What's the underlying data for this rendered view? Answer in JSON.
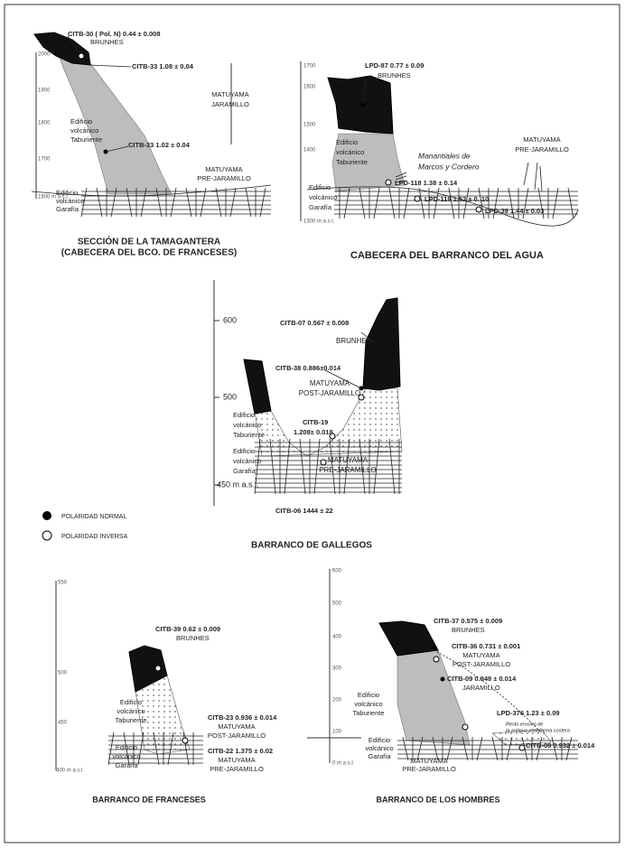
{
  "tamagantera": {
    "title": [
      "SECCIÓN DE LA TAMAGANTERA",
      "(CABECERA DEL BCO. DE FRANCESES)"
    ],
    "ticks": [
      "2000",
      "1900",
      "1800",
      "1700",
      "1600 m a.s.l."
    ],
    "citb30": "CITB-30 ( Pol. N) 0.44 ± 0.008",
    "brunhes": "BRUNHES",
    "citb33a": "CITB-33 1.08 ± 0.04",
    "jaramillo": [
      "MATUYAMA",
      "JARAMILLO"
    ],
    "taburiente": [
      "Edificio",
      "volcánico",
      "Taburiente"
    ],
    "citb33b": "CITB-33 1.02 ± 0.04",
    "prejaramillo": [
      "MATUYAMA",
      "PRE-JARAMILLO"
    ],
    "garafia": [
      "Edificio",
      "volcánico",
      "Garafía"
    ]
  },
  "agua": {
    "title": "CABECERA DEL  BARRANCO DEL AGUA",
    "ticks": [
      "1700",
      "1600",
      "1500",
      "1400",
      "1300 m a.s.l."
    ],
    "lpd87": "LPD-87  0.77 ± 0.09",
    "brunhes": "BRUNHES",
    "taburiente": [
      "Edificio",
      "volcánico",
      "Taburiente"
    ],
    "manantiales": [
      "Manantiales de",
      "Marcos y Cordero"
    ],
    "prejaramillo": [
      "MATUYAMA",
      "PRE-JARAMILLO"
    ],
    "garafia": [
      "Edificio",
      "volcánico",
      "Garafía"
    ],
    "lpd118": "LPD-118 1.38 ± 0.14",
    "lpd119": "LPD-119 1.52 ± 0. 10",
    "lpd39": "LPD-39 1.44 ± 0.03"
  },
  "gallegos": {
    "title": "BARRANCO DE GALLEGOS",
    "ticks": [
      "600",
      "500",
      "450 m a.s.l."
    ],
    "citb07": "CITB-07 0.567 ± 0.008",
    "brunhes": "BRUNHES",
    "citb38": "CITB-38  0.886±0.014",
    "postjaramillo": [
      "MATUYAMA",
      "POST-JARAMILLO"
    ],
    "taburiente": [
      "Edificio",
      "volcánico",
      "Taburiente"
    ],
    "citb19": [
      "CITB-19",
      "1.208± 0.018"
    ],
    "garafia": [
      "Edificio",
      "volcánico",
      "Garafía"
    ],
    "prejaramillo": [
      "MATUYAMA",
      "PRE-JARAMILLO"
    ],
    "citb06": "CITB-06  1444 ± 22"
  },
  "legend": {
    "normal": "POLARIDAD NORMAL",
    "inversa": "POLARIDAD INVERSA"
  },
  "franceses": {
    "title": "BARRANCO DE FRANCESES",
    "ticks": [
      "550",
      "500",
      "450",
      "400 m a.s.l."
    ],
    "citb39": "CITB-39  0.62 ± 0.009",
    "brunhes": "BRUNHES",
    "taburiente": [
      "Edificio",
      "volcánico",
      "Taburiente"
    ],
    "citb23": "CITB-23  0.936 ± 0.014",
    "postjaramillo": [
      "MATUYAMA",
      "POST-JARAMILLO"
    ],
    "citb22": "CITB-22  1.375 ± 0.02",
    "prejaramillo": [
      "MATUYAMA",
      "PRE-JARAMILLO"
    ],
    "garafia": [
      "Edificio",
      "volcánico",
      "Garafía"
    ]
  },
  "hombres": {
    "title": "BARRANCO DE LOS HOMBRES",
    "ticks": [
      "600",
      "500",
      "400",
      "300",
      "200",
      "100",
      "0 m a.s.l."
    ],
    "citb37": "CITB-37  0.575 ± 0.009",
    "brunhes": "BRUNHES",
    "citb36": "CITB-36  0.731 ± 0.001",
    "postjaramillo": [
      "MATUYAMA",
      "POST-JARAMILLO"
    ],
    "citb09": "CITB-09  0.948 ± 0.014",
    "jaramillo": "JARAMILLO",
    "taburiente": [
      "Edificio",
      "volcánico",
      "Taburiente"
    ],
    "lpd376": "LPD-376  1.23 ± 0.09",
    "resto": [
      "Resto erosivo de",
      "la antigua plataforma costera"
    ],
    "citb08": "CITB-08  0.932 ± 0.014",
    "garafia": [
      "Edificio",
      "volcánico",
      "Garafía"
    ],
    "prejaramillo": [
      "MATUYAMA",
      "PRE-JARAMILLO"
    ]
  }
}
